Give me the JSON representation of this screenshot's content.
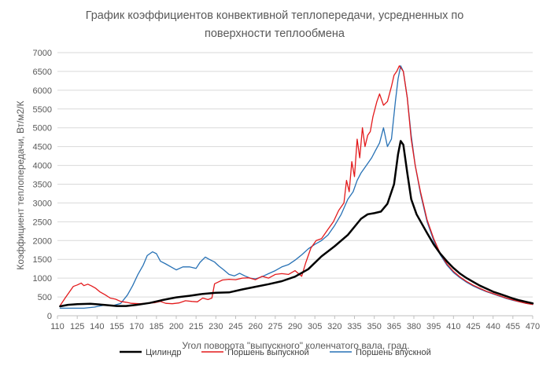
{
  "chart_data": {
    "type": "line",
    "title_lines": [
      "График коэффициентов конвективной теплопередачи, усредненных по",
      "поверхности теплообмена"
    ],
    "xlabel": "Угол поворота \"выпускного\" коленчатого вала, град.",
    "ylabel": "Коэффициент теплопередачи, Вт/м2/К",
    "xlim": [
      110,
      470
    ],
    "ylim": [
      0,
      7000
    ],
    "x_ticks": [
      110,
      125,
      140,
      155,
      170,
      185,
      200,
      215,
      230,
      245,
      260,
      275,
      290,
      305,
      320,
      335,
      350,
      365,
      380,
      395,
      410,
      425,
      440,
      455,
      470
    ],
    "y_ticks": [
      0,
      500,
      1000,
      1500,
      2000,
      2500,
      3000,
      3500,
      4000,
      4500,
      5000,
      5500,
      6000,
      6500,
      7000
    ],
    "grid": {
      "horizontal": true,
      "vertical": false
    },
    "legend_position": "bottom",
    "series": [
      {
        "name": "Цилиндр",
        "color": "#000000",
        "points": [
          [
            112,
            250
          ],
          [
            118,
            290
          ],
          [
            125,
            310
          ],
          [
            135,
            320
          ],
          [
            145,
            290
          ],
          [
            155,
            260
          ],
          [
            162,
            260
          ],
          [
            170,
            290
          ],
          [
            180,
            340
          ],
          [
            190,
            420
          ],
          [
            200,
            490
          ],
          [
            210,
            530
          ],
          [
            220,
            580
          ],
          [
            230,
            610
          ],
          [
            240,
            620
          ],
          [
            250,
            700
          ],
          [
            260,
            770
          ],
          [
            270,
            840
          ],
          [
            280,
            920
          ],
          [
            290,
            1040
          ],
          [
            300,
            1240
          ],
          [
            310,
            1580
          ],
          [
            320,
            1850
          ],
          [
            330,
            2150
          ],
          [
            340,
            2580
          ],
          [
            345,
            2700
          ],
          [
            350,
            2730
          ],
          [
            355,
            2770
          ],
          [
            360,
            2980
          ],
          [
            365,
            3500
          ],
          [
            368,
            4300
          ],
          [
            370,
            4650
          ],
          [
            372,
            4550
          ],
          [
            375,
            3800
          ],
          [
            378,
            3100
          ],
          [
            382,
            2700
          ],
          [
            386,
            2450
          ],
          [
            390,
            2200
          ],
          [
            395,
            1900
          ],
          [
            400,
            1650
          ],
          [
            405,
            1450
          ],
          [
            410,
            1270
          ],
          [
            415,
            1120
          ],
          [
            420,
            1000
          ],
          [
            425,
            900
          ],
          [
            430,
            800
          ],
          [
            435,
            720
          ],
          [
            440,
            640
          ],
          [
            445,
            580
          ],
          [
            450,
            520
          ],
          [
            455,
            460
          ],
          [
            460,
            410
          ],
          [
            465,
            370
          ],
          [
            470,
            330
          ]
        ]
      },
      {
        "name": "Поршень выпускной",
        "color": "#e31a1c",
        "points": [
          [
            112,
            270
          ],
          [
            116,
            480
          ],
          [
            119,
            630
          ],
          [
            122,
            780
          ],
          [
            125,
            820
          ],
          [
            128,
            870
          ],
          [
            130,
            800
          ],
          [
            133,
            840
          ],
          [
            136,
            790
          ],
          [
            139,
            730
          ],
          [
            142,
            640
          ],
          [
            146,
            560
          ],
          [
            150,
            470
          ],
          [
            154,
            440
          ],
          [
            158,
            380
          ],
          [
            162,
            360
          ],
          [
            166,
            330
          ],
          [
            172,
            320
          ],
          [
            178,
            330
          ],
          [
            184,
            350
          ],
          [
            188,
            380
          ],
          [
            192,
            330
          ],
          [
            197,
            320
          ],
          [
            202,
            340
          ],
          [
            207,
            400
          ],
          [
            212,
            380
          ],
          [
            216,
            370
          ],
          [
            220,
            470
          ],
          [
            224,
            430
          ],
          [
            227,
            470
          ],
          [
            229,
            850
          ],
          [
            232,
            900
          ],
          [
            235,
            950
          ],
          [
            240,
            970
          ],
          [
            245,
            960
          ],
          [
            250,
            1000
          ],
          [
            255,
            1010
          ],
          [
            260,
            960
          ],
          [
            265,
            1050
          ],
          [
            270,
            1000
          ],
          [
            275,
            1100
          ],
          [
            280,
            1120
          ],
          [
            285,
            1100
          ],
          [
            290,
            1200
          ],
          [
            295,
            1050
          ],
          [
            298,
            1400
          ],
          [
            302,
            1800
          ],
          [
            306,
            2000
          ],
          [
            310,
            2050
          ],
          [
            315,
            2300
          ],
          [
            319,
            2500
          ],
          [
            323,
            2800
          ],
          [
            327,
            3000
          ],
          [
            329,
            3600
          ],
          [
            331,
            3300
          ],
          [
            333,
            4100
          ],
          [
            335,
            3700
          ],
          [
            337,
            4700
          ],
          [
            339,
            4200
          ],
          [
            341,
            5000
          ],
          [
            343,
            4500
          ],
          [
            345,
            4800
          ],
          [
            347,
            4900
          ],
          [
            349,
            5300
          ],
          [
            352,
            5700
          ],
          [
            354,
            5900
          ],
          [
            357,
            5600
          ],
          [
            360,
            5700
          ],
          [
            363,
            6100
          ],
          [
            365,
            6400
          ],
          [
            367,
            6500
          ],
          [
            369,
            6650
          ],
          [
            370,
            6600
          ],
          [
            372,
            6500
          ],
          [
            375,
            5800
          ],
          [
            378,
            4700
          ],
          [
            381,
            4000
          ],
          [
            385,
            3300
          ],
          [
            390,
            2550
          ],
          [
            395,
            2050
          ],
          [
            400,
            1650
          ],
          [
            405,
            1380
          ],
          [
            410,
            1180
          ],
          [
            415,
            1030
          ],
          [
            420,
            910
          ],
          [
            425,
            810
          ],
          [
            430,
            730
          ],
          [
            435,
            650
          ],
          [
            440,
            590
          ],
          [
            445,
            530
          ],
          [
            450,
            470
          ],
          [
            455,
            420
          ],
          [
            460,
            370
          ],
          [
            465,
            330
          ],
          [
            470,
            300
          ]
        ]
      },
      {
        "name": "Поршень впускной",
        "color": "#2771b5",
        "points": [
          [
            112,
            200
          ],
          [
            120,
            200
          ],
          [
            130,
            200
          ],
          [
            138,
            230
          ],
          [
            145,
            280
          ],
          [
            152,
            270
          ],
          [
            158,
            330
          ],
          [
            163,
            550
          ],
          [
            167,
            800
          ],
          [
            171,
            1100
          ],
          [
            175,
            1350
          ],
          [
            178,
            1600
          ],
          [
            182,
            1700
          ],
          [
            185,
            1650
          ],
          [
            188,
            1450
          ],
          [
            192,
            1380
          ],
          [
            196,
            1300
          ],
          [
            200,
            1220
          ],
          [
            205,
            1300
          ],
          [
            210,
            1300
          ],
          [
            215,
            1260
          ],
          [
            218,
            1420
          ],
          [
            222,
            1560
          ],
          [
            225,
            1500
          ],
          [
            229,
            1430
          ],
          [
            232,
            1330
          ],
          [
            236,
            1220
          ],
          [
            240,
            1100
          ],
          [
            244,
            1060
          ],
          [
            248,
            1130
          ],
          [
            252,
            1060
          ],
          [
            256,
            1000
          ],
          [
            260,
            980
          ],
          [
            265,
            1040
          ],
          [
            270,
            1120
          ],
          [
            275,
            1200
          ],
          [
            280,
            1300
          ],
          [
            285,
            1360
          ],
          [
            290,
            1480
          ],
          [
            295,
            1620
          ],
          [
            300,
            1780
          ],
          [
            305,
            1900
          ],
          [
            310,
            2000
          ],
          [
            315,
            2150
          ],
          [
            320,
            2400
          ],
          [
            325,
            2700
          ],
          [
            330,
            3100
          ],
          [
            334,
            3300
          ],
          [
            337,
            3600
          ],
          [
            340,
            3800
          ],
          [
            344,
            4000
          ],
          [
            348,
            4200
          ],
          [
            351,
            4400
          ],
          [
            354,
            4600
          ],
          [
            357,
            5000
          ],
          [
            360,
            4500
          ],
          [
            363,
            4700
          ],
          [
            366,
            5700
          ],
          [
            368,
            6300
          ],
          [
            370,
            6650
          ],
          [
            372,
            6500
          ],
          [
            375,
            5800
          ],
          [
            378,
            4800
          ],
          [
            381,
            4000
          ],
          [
            385,
            3250
          ],
          [
            390,
            2500
          ],
          [
            395,
            2000
          ],
          [
            400,
            1620
          ],
          [
            405,
            1350
          ],
          [
            410,
            1150
          ],
          [
            415,
            1010
          ],
          [
            420,
            890
          ],
          [
            425,
            790
          ],
          [
            430,
            710
          ],
          [
            435,
            640
          ],
          [
            440,
            580
          ],
          [
            445,
            520
          ],
          [
            450,
            460
          ],
          [
            455,
            410
          ],
          [
            460,
            370
          ],
          [
            465,
            330
          ],
          [
            470,
            300
          ]
        ]
      }
    ]
  }
}
